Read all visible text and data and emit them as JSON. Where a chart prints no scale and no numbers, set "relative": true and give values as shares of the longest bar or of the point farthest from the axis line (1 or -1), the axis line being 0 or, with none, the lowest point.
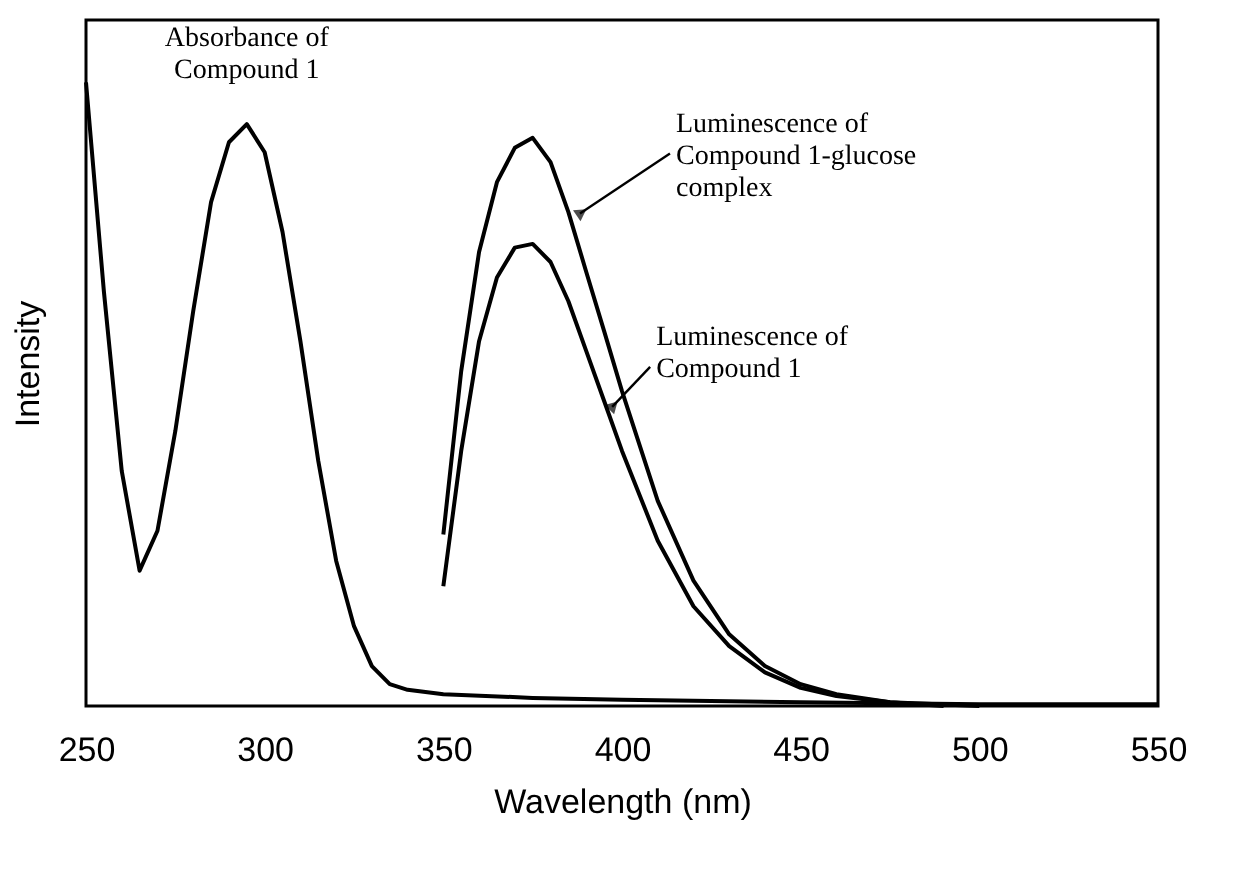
{
  "chart_data": {
    "type": "line",
    "xlabel": "Wavelength (nm)",
    "ylabel": "Intensity",
    "relative": true,
    "xlim": [
      250,
      550
    ],
    "xticks": [
      250,
      300,
      350,
      400,
      450,
      500,
      550
    ],
    "marker": "none",
    "line_style": "solid",
    "series": [
      {
        "color": "#000000",
        "x": [
          250,
          255,
          260,
          265,
          270,
          275,
          280,
          285,
          290,
          295,
          300,
          305,
          310,
          315,
          320,
          325,
          330,
          335,
          340,
          350,
          375,
          400,
          450,
          500,
          550
        ],
        "values": [
          1.0,
          0.665,
          0.377,
          0.217,
          0.281,
          0.441,
          0.633,
          0.808,
          0.904,
          0.933,
          0.888,
          0.76,
          0.585,
          0.393,
          0.233,
          0.128,
          0.064,
          0.035,
          0.026,
          0.019,
          0.013,
          0.01,
          0.006,
          0.003,
          0.003
        ]
      },
      {
        "color": "#000000",
        "x": [
          350,
          355,
          360,
          365,
          370,
          375,
          380,
          385,
          390,
          395,
          400,
          410,
          420,
          430,
          440,
          450,
          460,
          475,
          500
        ],
        "values": [
          0.275,
          0.537,
          0.728,
          0.84,
          0.895,
          0.911,
          0.872,
          0.792,
          0.696,
          0.601,
          0.505,
          0.329,
          0.201,
          0.115,
          0.064,
          0.035,
          0.019,
          0.006,
          0.0
        ]
      },
      {
        "color": "#000000",
        "x": [
          350,
          355,
          360,
          365,
          370,
          375,
          380,
          385,
          390,
          395,
          400,
          410,
          420,
          430,
          440,
          450,
          460,
          475,
          490
        ],
        "values": [
          0.192,
          0.409,
          0.585,
          0.687,
          0.735,
          0.741,
          0.712,
          0.649,
          0.569,
          0.489,
          0.409,
          0.265,
          0.16,
          0.096,
          0.054,
          0.029,
          0.016,
          0.006,
          0.0
        ]
      }
    ],
    "annotations": [
      {
        "text": "Absorbance of\nCompound 1",
        "x": 295,
        "y": 0.933
      },
      {
        "text": "Luminescence of\nCompound 1-glucose\ncomplex",
        "x": 386,
        "y": 0.78
      },
      {
        "text": "Luminescence of\nCompound 1",
        "x": 395,
        "y": 0.47
      }
    ]
  }
}
